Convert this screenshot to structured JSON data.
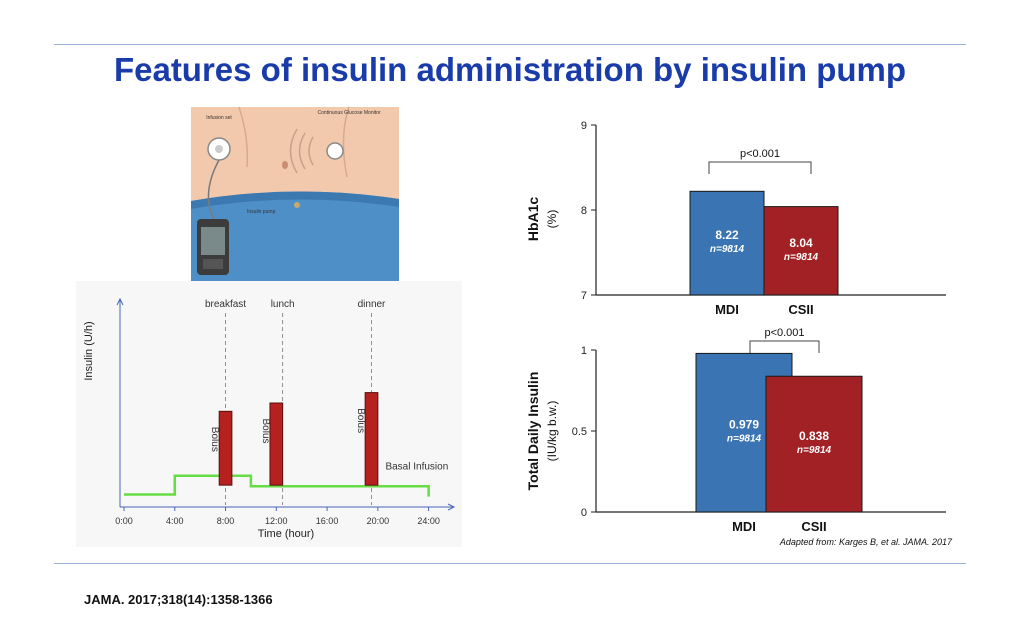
{
  "title": "Features of insulin administration by insulin pump",
  "citation": "JAMA. 2017;318(14):1358-1366",
  "illustration": {
    "labels": {
      "infusion_set": "Infusion set",
      "cgm": "Continuous Glucose Monitor",
      "pump": "Insulin pump"
    }
  },
  "colors": {
    "mdi": "#3a74b3",
    "csii": "#a22124",
    "basal": "#66dd44",
    "bolus": "#b5211f",
    "title": "#1a3caa"
  },
  "chart_data": [
    {
      "type": "bar",
      "title": "",
      "xlabel": "",
      "ylabel": "HbA1c",
      "yunit": "(%)",
      "ylim": [
        7,
        9
      ],
      "yticks": [
        "7",
        "8",
        "9"
      ],
      "ytick_values": [
        7,
        8,
        9
      ],
      "categories": [
        "MDI",
        "CSII"
      ],
      "values": [
        8.22,
        8.04
      ],
      "value_labels": [
        "8.22",
        "8.04"
      ],
      "n_labels": [
        "n=9814",
        "n=9814"
      ],
      "significance": "p<0.001"
    },
    {
      "type": "bar",
      "title": "",
      "xlabel": "",
      "ylabel": "Total Daily Insulin",
      "yunit": "(IU/kg b.w.)",
      "ylim": [
        0,
        1
      ],
      "yticks": [
        "0",
        "0.5",
        "1"
      ],
      "ytick_values": [
        0,
        0.5,
        1
      ],
      "categories": [
        "MDI",
        "CSII"
      ],
      "values": [
        0.979,
        0.838
      ],
      "value_labels": [
        "0.979",
        "0.838"
      ],
      "n_labels": [
        "n=9814",
        "n=9814"
      ],
      "significance": "p<0.001",
      "source": "Adapted from: Karges B, et al. JAMA. 2017"
    },
    {
      "type": "line",
      "title": "",
      "xlabel": "Time (hour)",
      "ylabel": "Insulin (U/h)",
      "xlim": [
        0,
        26
      ],
      "ylim": [
        0,
        10
      ],
      "xticks": [
        "0:00",
        "4:00",
        "8:00",
        "12:00",
        "16:00",
        "20:00",
        "24:00"
      ],
      "xtick_values": [
        0,
        4,
        8,
        12,
        16,
        20,
        24
      ],
      "series": [
        {
          "name": "Basal Infusion",
          "x": [
            0,
            4,
            4,
            10,
            10,
            24,
            24
          ],
          "y": [
            0.6,
            0.6,
            1.5,
            1.5,
            1.0,
            1.0,
            0.5
          ]
        }
      ],
      "boluses": [
        {
          "meal": "breakfast",
          "label": "Bolus",
          "x_start": 7.5,
          "x_end": 8.5,
          "height": 4.6
        },
        {
          "meal": "lunch",
          "label": "Bolus",
          "x_start": 11.5,
          "x_end": 12.5,
          "height": 5.0
        },
        {
          "meal": "dinner",
          "label": "Bolus",
          "x_start": 19,
          "x_end": 20,
          "height": 5.5
        }
      ],
      "meal_times": [
        8,
        12.5,
        19.5
      ],
      "basal_label": "Basal Infusion"
    }
  ]
}
